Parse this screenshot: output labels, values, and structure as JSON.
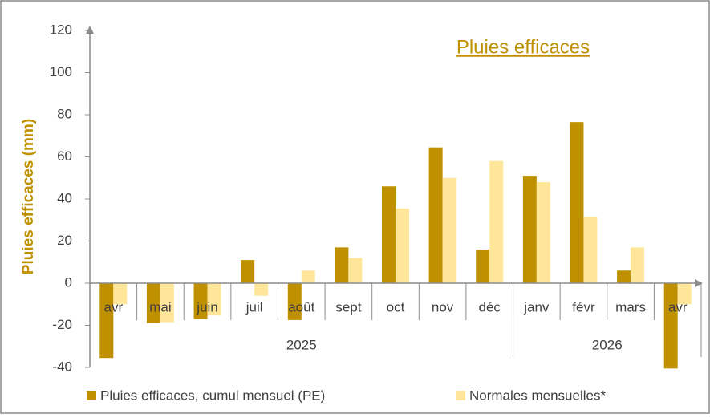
{
  "chart_data": {
    "type": "bar",
    "title": "Pluies efficaces",
    "y_label": "Pluies efficaces (mm)",
    "categories": [
      "avr",
      "mai",
      "juin",
      "juil",
      "août",
      "sept",
      "oct",
      "nov",
      "déc",
      "janv",
      "févr",
      "mars",
      "avr"
    ],
    "x_groups": [
      {
        "label": "2025",
        "start": 0,
        "end": 8
      },
      {
        "label": "2026",
        "start": 9,
        "end": 12
      }
    ],
    "series": [
      {
        "name": "Pluies efficaces, cumul mensuel (PE)",
        "color": "#bf9000",
        "values": [
          -35.5,
          -19,
          -17,
          11,
          -17.5,
          17,
          46,
          64.5,
          16,
          51,
          76.5,
          6,
          -40.5
        ]
      },
      {
        "name": "Normales mensuelles*",
        "color": "#ffe699",
        "values": [
          -10,
          -18.5,
          -15,
          -6,
          6,
          12,
          35.5,
          50,
          58,
          48,
          31.5,
          17,
          -10
        ]
      }
    ],
    "ylim": [
      -40,
      120
    ],
    "yticks": [
      -40,
      -20,
      0,
      20,
      40,
      60,
      80,
      100,
      120
    ],
    "legend": "bottom"
  }
}
